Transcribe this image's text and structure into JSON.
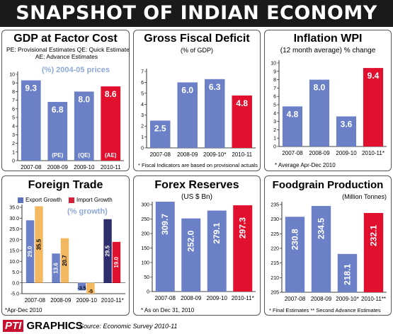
{
  "banner_title": "SNAPSHOT OF INDIAN ECONOMY",
  "colors": {
    "blue": "#6c80c8",
    "red": "#e0102e",
    "orange": "#f4b861",
    "purple": "#2e2e6e",
    "export": "#5a72c0",
    "import": "#d41e3a"
  },
  "gdp": {
    "title": "GDP at Factor Cost",
    "sub1": "PE: Provisional Estimates QE: Quick Estimates",
    "sub2": "AE: Advance Estimates",
    "prices": "(%) 2004-05 prices"
  },
  "fiscal": {
    "title": "Gross Fiscal Deficit",
    "sub": "(% of GDP)",
    "note": "* Fiscal Indicators are based on provisional actuals"
  },
  "inflation": {
    "title": "Inflation WPI",
    "sub": "(12 month average) % change",
    "note": "* Average Apr-Dec 2010"
  },
  "trade": {
    "title": "Foreign Trade",
    "growth": "(% growth)",
    "legend_export": "Export Growth",
    "legend_import": "Import Growth",
    "note": "*Apr-Dec 2010"
  },
  "forex": {
    "title": "Forex Reserves",
    "sub": "(US $ Bn)",
    "note": "* As on Dec 31, 2010"
  },
  "food": {
    "title": "Foodgrain Production",
    "sub": "(Million Tonnes)",
    "note": "* Final Estimates ** Second Advance Estimates"
  },
  "footer": {
    "pti": "PTI",
    "graphics": "GRAPHICS",
    "source": "Source: Economic Survey 2010-11"
  },
  "chart_data": [
    {
      "id": "gdp",
      "type": "bar",
      "title": "GDP at Factor Cost",
      "categories": [
        "2007-08",
        "2008-09",
        "2009-10",
        "2010-11"
      ],
      "values": [
        9.3,
        6.8,
        8.0,
        8.6
      ],
      "value_labels": [
        "9.3",
        "6.8",
        "8.0",
        "8.6"
      ],
      "bar_tags": [
        "",
        "(PE)",
        "(QE)",
        "(AE)"
      ],
      "bar_colors": [
        "#6c80c8",
        "#6c80c8",
        "#6c80c8",
        "#e0102e"
      ],
      "ylim": [
        0,
        10
      ],
      "yticks": [
        0,
        1,
        2,
        3,
        4,
        5,
        6,
        7,
        8,
        9,
        10
      ]
    },
    {
      "id": "fiscal",
      "type": "bar",
      "title": "Gross Fiscal Deficit",
      "categories": [
        "2007-08",
        "2008-09",
        "2009-10*",
        "2010-11"
      ],
      "values": [
        2.5,
        6.0,
        6.3,
        4.8
      ],
      "value_labels": [
        "2.5",
        "6.0",
        "6.3",
        "4.8"
      ],
      "bar_colors": [
        "#6c80c8",
        "#6c80c8",
        "#6c80c8",
        "#e0102e"
      ],
      "ylim": [
        0,
        7
      ],
      "yticks": [
        0,
        1,
        2,
        3,
        4,
        5,
        6,
        7
      ]
    },
    {
      "id": "inflation",
      "type": "bar",
      "title": "Inflation WPI",
      "categories": [
        "2007-08",
        "2008-09",
        "2009-10",
        "2010-11*"
      ],
      "values": [
        4.8,
        8.0,
        3.6,
        9.4
      ],
      "value_labels": [
        "4.8",
        "8.0",
        "3.6",
        "9.4"
      ],
      "bar_colors": [
        "#6c80c8",
        "#6c80c8",
        "#6c80c8",
        "#e0102e"
      ],
      "ylim": [
        0,
        10
      ],
      "yticks": [
        0,
        1,
        2,
        3,
        4,
        5,
        6,
        7,
        8,
        9,
        10
      ]
    },
    {
      "id": "trade",
      "type": "bar",
      "title": "Foreign Trade",
      "categories": [
        "2007-08",
        "2008-09",
        "2009-10",
        "2010-11*"
      ],
      "series": [
        {
          "name": "Export Growth",
          "values": [
            29.0,
            13.6,
            -3.5,
            29.5
          ],
          "labels": [
            "29.0",
            "13.6",
            "-3.5",
            "29.5"
          ],
          "colors": [
            "#6c80c8",
            "#6c80c8",
            "#6c80c8",
            "#2e2e6e"
          ]
        },
        {
          "name": "Import Growth",
          "values": [
            35.5,
            20.7,
            -5.0,
            19.0
          ],
          "labels": [
            "35.5",
            "20.7",
            "-5",
            "19.0"
          ],
          "colors": [
            "#f4b861",
            "#f4b861",
            "#f4b861",
            "#e0102e"
          ]
        }
      ],
      "ylim": [
        -5,
        35
      ],
      "yticks": [
        -5,
        0,
        5,
        10,
        15,
        20,
        25,
        30,
        35
      ],
      "ytick_labels": [
        "-5.0",
        "0.0",
        "5.0",
        "10.0",
        "15.0",
        "20.0",
        "25.0",
        "30.0",
        "35.0"
      ]
    },
    {
      "id": "forex",
      "type": "bar",
      "title": "Forex Reserves",
      "categories": [
        "2007-08",
        "2008-09",
        "2009-10",
        "2010-11*"
      ],
      "values": [
        309.7,
        252.0,
        279.1,
        297.3
      ],
      "value_labels": [
        "309.7",
        "252.0",
        "279.1",
        "297.3"
      ],
      "bar_colors": [
        "#6c80c8",
        "#6c80c8",
        "#6c80c8",
        "#e0102e"
      ],
      "ylim": [
        0,
        300
      ],
      "yticks": [
        0,
        50,
        100,
        150,
        200,
        250,
        300
      ]
    },
    {
      "id": "food",
      "type": "bar",
      "title": "Foodgrain Production",
      "categories": [
        "2007-08",
        "2008-09",
        "2009-10*",
        "2010-11**"
      ],
      "values": [
        230.8,
        234.5,
        218.1,
        232.1
      ],
      "value_labels": [
        "230.8",
        "234.5",
        "218.1",
        "232.1"
      ],
      "bar_colors": [
        "#6c80c8",
        "#6c80c8",
        "#6c80c8",
        "#e0102e"
      ],
      "ylim": [
        205,
        235
      ],
      "yticks": [
        205,
        210,
        215,
        220,
        225,
        230,
        235
      ]
    }
  ]
}
